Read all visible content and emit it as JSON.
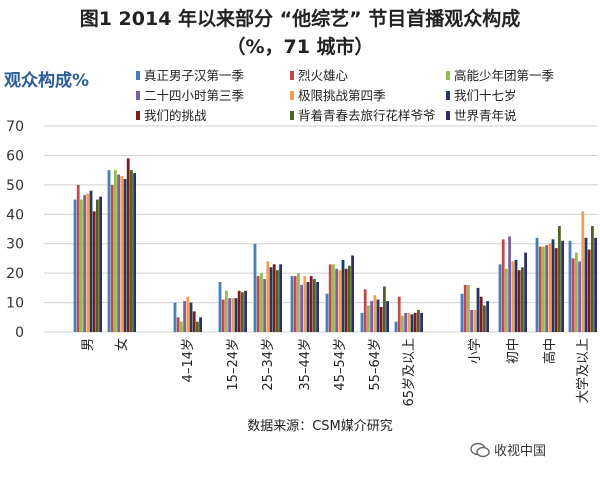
{
  "colors": {
    "label": "#2b5d96",
    "series": [
      "#4a7ebb",
      "#be4b48",
      "#98b954",
      "#7d60a0",
      "#f59d56",
      "#23395d",
      "#7a1c1c",
      "#4f6228",
      "#2f2f66"
    ]
  },
  "watermark": {
    "text": "收视中国",
    "icon": "wechat-icon"
  },
  "chart_data": {
    "type": "bar",
    "title": "图1 2014 年以来部分 “他综艺” 节目首播观众构成",
    "subtitle": "（%，71 城市）",
    "ylabel": "观众构成%",
    "source": "数据来源：CSM媒介研究",
    "ylim": [
      0,
      70
    ],
    "yticks": [
      0,
      10,
      20,
      30,
      40,
      50,
      60,
      70
    ],
    "grid": true,
    "legend_position": "top",
    "categories": [
      "男",
      "女",
      "4–14岁",
      "15–24岁",
      "25–34岁",
      "35–44岁",
      "45–54岁",
      "55–64岁",
      "65岁及以上",
      "小学",
      "初中",
      "高中",
      "大学及以上"
    ],
    "series": [
      {
        "name": "真正男子汉第一季",
        "values": [
          45,
          55,
          10,
          17,
          30,
          19,
          13,
          6.5,
          3.5,
          13,
          23,
          32,
          31
        ]
      },
      {
        "name": "烈火雄心",
        "values": [
          50,
          50,
          5,
          11,
          19,
          19,
          23,
          14.5,
          12,
          16,
          31.5,
          29,
          25
        ]
      },
      {
        "name": "高能少年团第一季",
        "values": [
          45,
          55,
          3.5,
          14,
          20,
          20,
          23,
          9,
          5.5,
          16,
          21.5,
          29,
          27
        ]
      },
      {
        "name": "二十四小时第三季",
        "values": [
          46.5,
          53.5,
          10.5,
          11.5,
          18,
          16,
          21.5,
          10.5,
          6.5,
          7.5,
          32.5,
          29.5,
          24
        ]
      },
      {
        "name": "极限挑战第四季",
        "values": [
          47,
          53,
          12,
          11.5,
          24,
          19,
          21,
          12.5,
          6.5,
          7.5,
          24,
          30,
          41
        ]
      },
      {
        "name": "我们十七岁",
        "values": [
          48,
          52,
          10,
          11.5,
          22,
          17,
          24.5,
          11,
          6,
          15,
          24.5,
          31.5,
          32
        ]
      },
      {
        "name": "我们的挑战",
        "values": [
          41,
          59,
          7,
          14,
          23,
          19,
          21.5,
          8.5,
          6.5,
          12,
          21,
          28.5,
          28
        ]
      },
      {
        "name": "背着青春去旅行花样爷爷",
        "values": [
          45,
          55,
          3.5,
          13.5,
          21,
          18,
          22.5,
          15.5,
          7.5,
          9,
          22,
          36,
          36
        ]
      },
      {
        "name": "世界青年说",
        "values": [
          46,
          54,
          5,
          14,
          23,
          17,
          26,
          10.5,
          6.5,
          10.5,
          27,
          31,
          32
        ]
      }
    ]
  }
}
